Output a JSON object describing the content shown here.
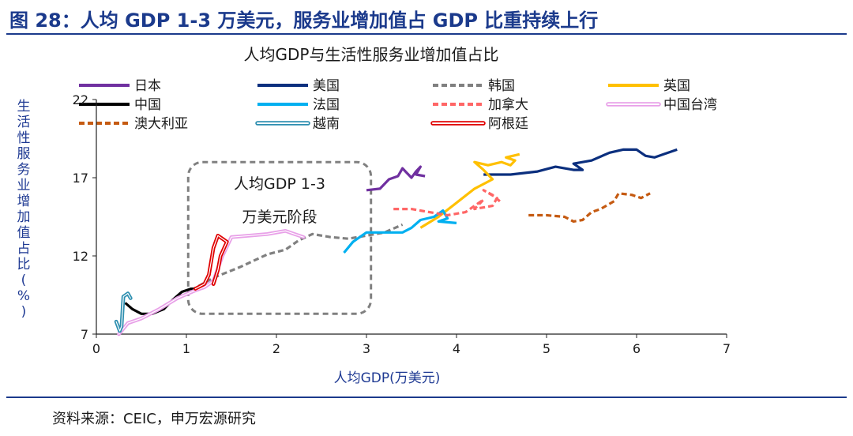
{
  "header": {
    "figure_title": "图 28：人均 GDP 1-3 万美元，服务业增加值占 GDP 比重持续上行"
  },
  "footer": {
    "source": "资料来源：CEIC，申万宏源研究"
  },
  "chart_data": {
    "type": "line",
    "title": "人均GDP与生活性服务业增加值占比",
    "xlabel": "人均GDP(万美元)",
    "ylabel": "生活性服务业增加值占比(%)",
    "xlim": [
      0,
      7
    ],
    "ylim": [
      7,
      22
    ],
    "xticks": [
      "0",
      "1",
      "2",
      "3",
      "4",
      "5",
      "6",
      "7"
    ],
    "yticks": [
      "7",
      "12",
      "17",
      "22"
    ],
    "legend_position": "top",
    "annotation": {
      "lines": [
        "人均GDP 1-3",
        "万美元阶段"
      ],
      "x_range": [
        1.02,
        3.05
      ],
      "y_range": [
        8.3,
        18.0
      ]
    },
    "series": [
      {
        "name": "日本",
        "color": "#7030a0",
        "style": "solid",
        "points": [
          [
            3.0,
            16.2
          ],
          [
            3.15,
            16.3
          ],
          [
            3.25,
            16.9
          ],
          [
            3.35,
            17.1
          ],
          [
            3.4,
            17.6
          ],
          [
            3.45,
            17.3
          ],
          [
            3.5,
            17.0
          ],
          [
            3.55,
            17.4
          ],
          [
            3.6,
            17.7
          ],
          [
            3.55,
            17.2
          ],
          [
            3.65,
            17.1
          ]
        ]
      },
      {
        "name": "美国",
        "color": "#0b2f7e",
        "style": "solid",
        "points": [
          [
            4.3,
            17.2
          ],
          [
            4.6,
            17.2
          ],
          [
            4.9,
            17.4
          ],
          [
            5.1,
            17.7
          ],
          [
            5.3,
            17.5
          ],
          [
            5.4,
            17.5
          ],
          [
            5.3,
            17.9
          ],
          [
            5.5,
            18.1
          ],
          [
            5.7,
            18.6
          ],
          [
            5.85,
            18.8
          ],
          [
            6.0,
            18.8
          ],
          [
            6.1,
            18.4
          ],
          [
            6.2,
            18.3
          ],
          [
            6.3,
            18.5
          ],
          [
            6.45,
            18.8
          ]
        ]
      },
      {
        "name": "韩国",
        "color": "#808080",
        "style": "dashed",
        "points": [
          [
            1.05,
            9.8
          ],
          [
            1.3,
            10.6
          ],
          [
            1.6,
            11.3
          ],
          [
            1.9,
            12.1
          ],
          [
            2.1,
            12.4
          ],
          [
            2.25,
            13.0
          ],
          [
            2.4,
            13.4
          ],
          [
            2.6,
            13.2
          ],
          [
            2.8,
            13.1
          ],
          [
            3.0,
            13.3
          ],
          [
            3.2,
            13.5
          ],
          [
            3.4,
            14.0
          ]
        ]
      },
      {
        "name": "英国",
        "color": "#ffc000",
        "style": "solid",
        "points": [
          [
            3.6,
            13.8
          ],
          [
            3.8,
            14.5
          ],
          [
            4.0,
            15.4
          ],
          [
            4.2,
            16.3
          ],
          [
            4.4,
            16.9
          ],
          [
            4.3,
            17.5
          ],
          [
            4.2,
            18.0
          ],
          [
            4.35,
            17.8
          ],
          [
            4.5,
            18.0
          ],
          [
            4.6,
            17.8
          ],
          [
            4.65,
            18.1
          ],
          [
            4.55,
            18.3
          ],
          [
            4.7,
            18.5
          ]
        ]
      },
      {
        "name": "中国",
        "color": "#000000",
        "style": "solid",
        "points": [
          [
            0.32,
            9.0
          ],
          [
            0.4,
            8.6
          ],
          [
            0.5,
            8.3
          ],
          [
            0.62,
            8.3
          ],
          [
            0.75,
            8.6
          ],
          [
            0.85,
            9.2
          ],
          [
            0.95,
            9.7
          ],
          [
            1.05,
            9.9
          ],
          [
            1.15,
            9.9
          ]
        ]
      },
      {
        "name": "法国",
        "color": "#00b0f0",
        "style": "solid",
        "points": [
          [
            2.75,
            12.2
          ],
          [
            2.85,
            12.9
          ],
          [
            2.9,
            13.1
          ],
          [
            3.0,
            13.5
          ],
          [
            3.2,
            13.5
          ],
          [
            3.4,
            13.5
          ],
          [
            3.5,
            13.8
          ],
          [
            3.6,
            14.3
          ],
          [
            3.75,
            14.5
          ],
          [
            3.85,
            14.9
          ],
          [
            3.9,
            14.4
          ],
          [
            3.8,
            14.2
          ],
          [
            4.0,
            14.1
          ]
        ]
      },
      {
        "name": "加拿大",
        "color": "#ff6666",
        "style": "dashed",
        "points": [
          [
            3.3,
            15.0
          ],
          [
            3.5,
            15.0
          ],
          [
            3.7,
            14.8
          ],
          [
            3.9,
            14.6
          ],
          [
            4.1,
            14.8
          ],
          [
            4.2,
            15.2
          ],
          [
            4.3,
            15.6
          ],
          [
            4.2,
            15.0
          ],
          [
            4.4,
            15.2
          ],
          [
            4.45,
            15.7
          ],
          [
            4.3,
            16.2
          ],
          [
            4.4,
            15.9
          ],
          [
            4.5,
            15.4
          ]
        ]
      },
      {
        "name": "中国台湾",
        "color": "#e8a0e8",
        "style": "double",
        "points": [
          [
            0.25,
            7.0
          ],
          [
            0.35,
            7.7
          ],
          [
            0.5,
            8.0
          ],
          [
            0.7,
            8.6
          ],
          [
            0.9,
            9.3
          ],
          [
            1.1,
            9.8
          ],
          [
            1.2,
            10.0
          ],
          [
            1.3,
            10.4
          ],
          [
            1.4,
            12.0
          ],
          [
            1.5,
            13.2
          ],
          [
            1.7,
            13.3
          ],
          [
            1.9,
            13.4
          ],
          [
            2.1,
            13.6
          ],
          [
            2.2,
            13.4
          ],
          [
            2.3,
            13.2
          ]
        ]
      },
      {
        "name": "澳大利亚",
        "color": "#c55a11",
        "style": "dashed",
        "points": [
          [
            4.8,
            14.6
          ],
          [
            5.0,
            14.6
          ],
          [
            5.2,
            14.5
          ],
          [
            5.3,
            14.2
          ],
          [
            5.4,
            14.3
          ],
          [
            5.5,
            14.8
          ],
          [
            5.6,
            15.0
          ],
          [
            5.75,
            15.5
          ],
          [
            5.8,
            16.0
          ],
          [
            5.95,
            15.9
          ],
          [
            6.05,
            15.7
          ],
          [
            6.15,
            16.0
          ]
        ]
      },
      {
        "name": "越南",
        "color": "#2e8fb0",
        "style": "double",
        "points": [
          [
            0.22,
            7.8
          ],
          [
            0.26,
            7.2
          ],
          [
            0.28,
            7.5
          ],
          [
            0.3,
            9.4
          ],
          [
            0.35,
            9.6
          ],
          [
            0.38,
            9.3
          ]
        ]
      },
      {
        "name": "阿根廷",
        "color": "#e00000",
        "style": "double",
        "points": [
          [
            1.1,
            9.9
          ],
          [
            1.2,
            10.2
          ],
          [
            1.25,
            10.8
          ],
          [
            1.3,
            12.5
          ],
          [
            1.35,
            13.3
          ],
          [
            1.4,
            13.1
          ],
          [
            1.45,
            12.9
          ],
          [
            1.38,
            12.0
          ],
          [
            1.35,
            11.1
          ],
          [
            1.3,
            10.2
          ]
        ]
      }
    ]
  }
}
